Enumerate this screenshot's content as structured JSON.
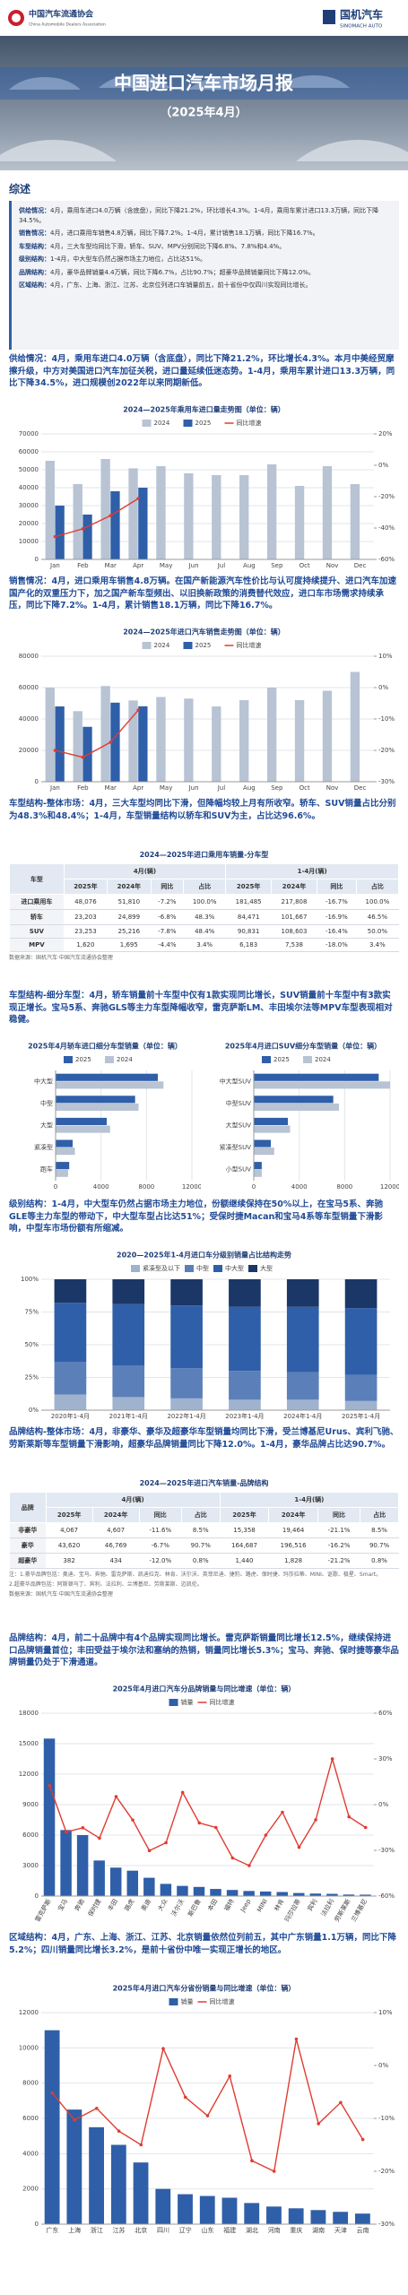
{
  "header": {
    "org": "中国汽车流通协会",
    "org_en": "China Automobile Dealers Association",
    "brand": "国机汽车",
    "brand_en": "SINOMACH AUTO"
  },
  "hero": {
    "title": "中国进口汽车市场月报",
    "subtitle": "（2025年4月）"
  },
  "summary": {
    "heading": "综述",
    "items": [
      {
        "label": "供给情况：",
        "text": "4月，乘用车进口4.0万辆（含底盘），同比下降21.2%，环比增长4.3%。1-4月，乘用车累计进口13.3万辆，同比下降34.5%。"
      },
      {
        "label": "销售情况：",
        "text": "4月，进口乘用车销售4.8万辆，同比下降7.2%。1-4月，累计销售18.1万辆，同比下降16.7%。"
      },
      {
        "label": "车型结构：",
        "text": "4月，三大车型均同比下滑，轿车、SUV、MPV分别同比下降6.8%、7.8%和4.4%。"
      },
      {
        "label": "级别结构：",
        "text": "1-4月，中大型车仍然占据市场主力地位，占比达51%。"
      },
      {
        "label": "品牌结构：",
        "text": "4月，豪华品牌销量4.4万辆，同比下降6.7%，占比90.7%；超豪华品牌销量同比下降12.0%。"
      },
      {
        "label": "区域结构：",
        "text": "4月，广东、上海、浙江、江苏、北京位列进口车销量前五，前十省份中仅四川实现同比增长。"
      }
    ]
  },
  "analysis": [
    "供给情况：4月，乘用车进口4.0万辆（含底盘），同比下降21.2%，环比增长4.3%。本月中美经贸摩擦升级，中方对美国进口汽车加征关税，进口量延续低迷态势。1-4月，乘用车累计进口13.3万辆，同比下降34.5%，进口规模创2022年以来同期新低。",
    "销售情况：4月，进口乘用车销售4.8万辆。在国产新能源汽车性价比与认可度持续提升、进口汽车加速国产化的双重压力下，加之国产新车型频出、以旧换新政策的消费替代效应，进口车市场需求持续承压，同比下降7.2%。1-4月，累计销售18.1万辆，同比下降16.7%。",
    "车型结构-整体市场：4月，三大车型均同比下滑，但降幅均较上月有所收窄。轿车、SUV销量占比分别为48.3%和48.4%；1-4月，车型销量结构以轿车和SUV为主，占比达96.6%。",
    "车型结构-细分车型：4月，轿车销量前十车型中仅有1款实现同比增长，SUV销量前十车型中有3款实现正增长。宝马5系、奔驰GLS等主力车型降幅收窄，雷克萨斯LM、丰田埃尔法等MPV车型表现相对稳健。",
    "级别结构：1-4月，中大型车仍然占据市场主力地位，份额继续保持在50%以上，在宝马5系、奔驰GLE等主力车型的带动下，中大型车型占比达51%；受保时捷Macan和宝马4系等车型销量下滑影响，中型车市场份额有所缩减。",
    "品牌结构-整体市场：4月，非豪华、豪华及超豪华车型销量均同比下滑，受兰博基尼Urus、宾利飞驰、劳斯莱斯等车型销量下滑影响，超豪华品牌销量同比下降12.0%。1-4月，豪华品牌占比达90.7%。",
    "品牌结构：4月，前二十品牌中有4个品牌实现同比增长。雷克萨斯销量同比增长12.5%，继续保持进口品牌销量首位；丰田受益于埃尔法和塞纳的热销，销量同比增长5.3%；宝马、奔驰、保时捷等豪华品牌销量仍处于下滑通道。",
    "区域结构：4月，广东、上海、浙江、江苏、北京销量依然位列前五，其中广东销量1.1万辆，同比下降5.2%；四川销量同比增长3.2%，是前十省份中唯一实现正增长的地区。"
  ],
  "charts": {
    "imports": {
      "type": "bar",
      "title": "2024—2025年乘用车进口量走势图（单位：辆）",
      "categories": [
        "Jan",
        "Feb",
        "Mar",
        "Apr",
        "May",
        "Jun",
        "Jul",
        "Aug",
        "Sep",
        "Oct",
        "Nov",
        "Dec"
      ],
      "series": [
        {
          "name": "2024",
          "color": "#b8c3d4",
          "values": [
            55000,
            42000,
            56000,
            50800,
            52000,
            48000,
            47000,
            47000,
            53000,
            41000,
            52000,
            42000
          ]
        },
        {
          "name": "2025",
          "color": "#2f5fa8",
          "values": [
            30000,
            25000,
            38000,
            40000,
            null,
            null,
            null,
            null,
            null,
            null,
            null,
            null
          ]
        },
        {
          "name": "同比增速",
          "color": "#e03c31",
          "type": "line",
          "axis": "y2",
          "values": [
            -45.5,
            -40.5,
            -32.1,
            -21.2,
            null,
            null,
            null,
            null,
            null,
            null,
            null,
            null
          ]
        }
      ],
      "ylim": [
        0,
        70000
      ],
      "yticks": [
        0,
        10000,
        20000,
        30000,
        40000,
        50000,
        60000,
        70000
      ],
      "y2lim": [
        -60,
        20
      ],
      "y2ticks": [
        {
          "value": -60,
          "label": "-60%"
        },
        {
          "value": -40,
          "label": "-40%"
        },
        {
          "value": -20,
          "label": "-20%"
        },
        {
          "value": 0,
          "label": "0%"
        },
        {
          "value": 20,
          "label": "20%"
        }
      ],
      "grid": true
    },
    "sales": {
      "type": "bar",
      "title": "2024—2025年进口汽车销售走势图（单位：辆）",
      "categories": [
        "Jan",
        "Feb",
        "Mar",
        "Apr",
        "May",
        "Jun",
        "Jul",
        "Aug",
        "Sep",
        "Oct",
        "Nov",
        "Dec"
      ],
      "series": [
        {
          "name": "2024",
          "color": "#b8c3d4",
          "values": [
            60000,
            45000,
            61000,
            51800,
            54000,
            53000,
            48000,
            52000,
            60000,
            52000,
            58000,
            70000
          ]
        },
        {
          "name": "2025",
          "color": "#2f5fa8",
          "values": [
            48000,
            35000,
            50400,
            48100,
            null,
            null,
            null,
            null,
            null,
            null,
            null,
            null
          ]
        },
        {
          "name": "同比增速",
          "color": "#e03c31",
          "type": "line",
          "axis": "y2",
          "values": [
            -20.0,
            -22.2,
            -17.4,
            -7.2,
            null,
            null,
            null,
            null,
            null,
            null,
            null,
            null
          ]
        }
      ],
      "ylim": [
        0,
        80000
      ],
      "yticks": [
        0,
        20000,
        40000,
        60000,
        80000
      ],
      "y2lim": [
        -30,
        10
      ],
      "y2ticks": [
        {
          "value": -30,
          "label": "-30%"
        },
        {
          "value": -20,
          "label": "-20%"
        },
        {
          "value": -10,
          "label": "-10%"
        },
        {
          "value": 0,
          "label": "0%"
        },
        {
          "value": 10,
          "label": "10%"
        }
      ],
      "grid": true
    },
    "sedan": {
      "type": "hbar",
      "title": "2025年4月轿车进口细分车型销量（单位：辆）",
      "categories": [
        "中大型",
        "中型",
        "大型",
        "紧凑型",
        "跑车"
      ],
      "series": [
        {
          "name": "2025",
          "color": "#2f5fa8",
          "values": [
            9000,
            7000,
            4500,
            1500,
            1200
          ]
        },
        {
          "name": "2024",
          "color": "#b8c3d4",
          "values": [
            9500,
            7300,
            4800,
            1700,
            1100
          ]
        }
      ],
      "xlim": [
        0,
        12000
      ],
      "xticks": [
        0,
        4000,
        8000,
        12000
      ],
      "grid": true
    },
    "suv": {
      "type": "hbar",
      "title": "2025年4月进口SUV细分车型销量（单位：辆）",
      "categories": [
        "中大型SUV",
        "中型SUV",
        "大型SUV",
        "紧凑型SUV",
        "小型SUV"
      ],
      "series": [
        {
          "name": "2025",
          "color": "#2f5fa8",
          "values": [
            11000,
            7000,
            3000,
            1500,
            700
          ]
        },
        {
          "name": "2024",
          "color": "#b8c3d4",
          "values": [
            12000,
            7500,
            3200,
            1800,
            700
          ]
        }
      ],
      "xlim": [
        0,
        12000
      ],
      "xticks": [
        0,
        4000,
        8000,
        12000
      ],
      "grid": true
    },
    "levels": {
      "type": "stacked_bar",
      "title": "2020—2025年1-4月进口车分级别销量占比结构走势",
      "categories": [
        "2020年1-4月",
        "2021年1-4月",
        "2022年1-4月",
        "2023年1-4月",
        "2024年1-4月",
        "2025年1-4月"
      ],
      "series": [
        {
          "name": "紧凑型及以下",
          "color": "#9fb3cf",
          "values": [
            12,
            10,
            9,
            8,
            8,
            7
          ]
        },
        {
          "name": "中型",
          "color": "#5b7fb8",
          "values": [
            25,
            24,
            23,
            22,
            21,
            20
          ]
        },
        {
          "name": "中大型",
          "color": "#2f5fa8",
          "values": [
            45,
            47,
            48,
            49,
            50,
            51
          ]
        },
        {
          "name": "大型",
          "color": "#1b3767",
          "values": [
            18,
            19,
            20,
            21,
            21,
            22
          ]
        }
      ],
      "ylim": [
        0,
        100
      ],
      "yticks": [
        {
          "value": 0,
          "label": "0%"
        },
        {
          "value": 25,
          "label": "25%"
        },
        {
          "value": 50,
          "label": "50%"
        },
        {
          "value": 75,
          "label": "75%"
        },
        {
          "value": 100,
          "label": "100%"
        }
      ],
      "grid": true
    },
    "brands": {
      "type": "bar",
      "title": "2025年4月进口汽车分品牌销量与同比增速（单位：辆）",
      "categories": [
        "雷克萨斯",
        "宝马",
        "奔驰",
        "保时捷",
        "丰田",
        "路虎",
        "奥迪",
        "大众",
        "沃尔沃",
        "斯巴鲁",
        "本田",
        "福特",
        "Jeep",
        "MINI",
        "林肯",
        "玛莎拉蒂",
        "宾利",
        "法拉利",
        "劳斯莱斯",
        "兰博基尼"
      ],
      "series": [
        {
          "name": "销量",
          "color": "#2f5fa8",
          "values": [
            15500,
            6500,
            6000,
            3500,
            2800,
            2500,
            1800,
            1200,
            1000,
            900,
            700,
            600,
            500,
            450,
            400,
            300,
            250,
            220,
            150,
            140
          ]
        },
        {
          "name": "同比增速",
          "color": "#e03c31",
          "type": "line",
          "axis": "y2",
          "values": [
            12.5,
            -18.0,
            -15.2,
            -22.0,
            5.3,
            -10.1,
            -30.2,
            -25.0,
            8.0,
            -12.0,
            -15.0,
            -35.0,
            -40.0,
            -20.0,
            -5.0,
            -28.0,
            -10.0,
            30.0,
            -8.0,
            -15.0
          ]
        }
      ],
      "ylim": [
        0,
        18000
      ],
      "yticks": [
        0,
        3000,
        6000,
        9000,
        12000,
        15000,
        18000
      ],
      "y2lim": [
        -60,
        60
      ],
      "y2ticks": [
        {
          "value": -60,
          "label": "-60%"
        },
        {
          "value": -30,
          "label": "-30%"
        },
        {
          "value": 0,
          "label": "0%"
        },
        {
          "value": 30,
          "label": "30%"
        },
        {
          "value": 60,
          "label": "60%"
        }
      ],
      "grid": true
    },
    "regions": {
      "type": "bar",
      "title": "2025年4月进口汽车分省份销量与同比增速（单位：辆）",
      "categories": [
        "广东",
        "上海",
        "浙江",
        "江苏",
        "北京",
        "四川",
        "辽宁",
        "山东",
        "福建",
        "湖北",
        "河南",
        "重庆",
        "湖南",
        "天津",
        "云南"
      ],
      "series": [
        {
          "name": "销量",
          "color": "#2f5fa8",
          "values": [
            11000,
            6500,
            5500,
            4500,
            3500,
            2000,
            1700,
            1600,
            1500,
            1200,
            1000,
            900,
            800,
            700,
            600
          ]
        },
        {
          "name": "同比增速",
          "color": "#e03c31",
          "type": "line",
          "axis": "y2",
          "values": [
            -5.2,
            -10.3,
            -8.1,
            -12.4,
            -15.0,
            3.2,
            -6.0,
            -9.5,
            -2.0,
            -18.0,
            -20.0,
            5.0,
            -11.0,
            -7.0,
            -14.0
          ]
        }
      ],
      "ylim": [
        0,
        12000
      ],
      "yticks": [
        0,
        2000,
        4000,
        6000,
        8000,
        10000,
        12000
      ],
      "y2lim": [
        -30,
        10
      ],
      "y2ticks": [
        {
          "value": -30,
          "label": "-30%"
        },
        {
          "value": -20,
          "label": "-20%"
        },
        {
          "value": -10,
          "label": "-10%"
        },
        {
          "value": 0,
          "label": "0%"
        },
        {
          "value": 10,
          "label": "10%"
        }
      ],
      "grid": true
    }
  },
  "tables": {
    "models": {
      "title": "2024—2025年进口乘用车销量-分车型",
      "header": [
        "车型",
        "4月(辆)",
        "1-4月(辆)"
      ],
      "subheader": [
        "2025年",
        "2024年",
        "同比",
        "占比",
        "2025年",
        "2024年",
        "同比",
        "占比"
      ],
      "rows": [
        [
          "进口乘用车",
          "48,076",
          "51,810",
          "-7.2%",
          "100.0%",
          "181,485",
          "217,808",
          "-16.7%",
          "100.0%"
        ],
        [
          "轿车",
          "23,203",
          "24,899",
          "-6.8%",
          "48.3%",
          "84,471",
          "101,667",
          "-16.9%",
          "46.5%"
        ],
        [
          "SUV",
          "23,253",
          "25,216",
          "-7.8%",
          "48.4%",
          "90,831",
          "108,603",
          "-16.4%",
          "50.0%"
        ],
        [
          "MPV",
          "1,620",
          "1,695",
          "-4.4%",
          "3.4%",
          "6,183",
          "7,538",
          "-18.0%",
          "3.4%"
        ]
      ],
      "notes": [
        "数据来源：国机汽车·中国汽车流通协会整理"
      ]
    },
    "brands": {
      "title": "2024—2025年进口汽车销量-品牌结构",
      "header": [
        "品牌",
        "4月(辆)",
        "1-4月(辆)"
      ],
      "subheader": [
        "2025年",
        "2024年",
        "同比",
        "占比",
        "2025年",
        "2024年",
        "同比",
        "占比"
      ],
      "rows": [
        [
          "非豪华",
          "4,067",
          "4,607",
          "-11.6%",
          "8.5%",
          "15,358",
          "19,464",
          "-21.1%",
          "8.5%"
        ],
        [
          "豪华",
          "43,620",
          "46,769",
          "-6.7%",
          "90.7%",
          "164,687",
          "196,516",
          "-16.2%",
          "90.7%"
        ],
        [
          "超豪华",
          "382",
          "434",
          "-12.0%",
          "0.8%",
          "1,440",
          "1,828",
          "-21.2%",
          "0.8%"
        ]
      ],
      "notes": [
        "注：1.豪华品牌包括：奥迪、宝马、奔驰、雷克萨斯、凯迪拉克、林肯、沃尔沃、英菲尼迪、捷豹、路虎、保时捷、玛莎拉蒂、MINI、讴歌、极星、Smart。",
        "2.超豪华品牌包括：阿斯顿马丁、宾利、法拉利、兰博基尼、劳斯莱斯、迈凯伦。",
        "数据来源：国机汽车·中国汽车流通协会整理"
      ]
    }
  }
}
